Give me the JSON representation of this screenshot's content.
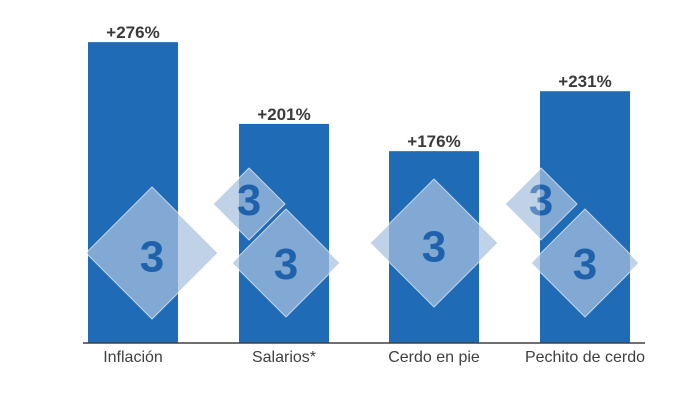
{
  "chart_data": {
    "type": "bar",
    "categories": [
      "Inflación",
      "Salarios*",
      "Cerdo en pie",
      "Pechito de cerdo"
    ],
    "values": [
      276,
      201,
      176,
      231
    ],
    "value_labels": [
      "+276%",
      "+201%",
      "+176%",
      "+231%"
    ],
    "title": "",
    "xlabel": "",
    "ylabel": "",
    "ylim": [
      0,
      300
    ],
    "grid": false,
    "legend": "none",
    "bar_color": "#1f6bb5",
    "axis_color": "#404040"
  },
  "watermark": {
    "glyph": "3",
    "fill_color": "#a9c2e0",
    "glyph_color": "#1f5fa8"
  }
}
